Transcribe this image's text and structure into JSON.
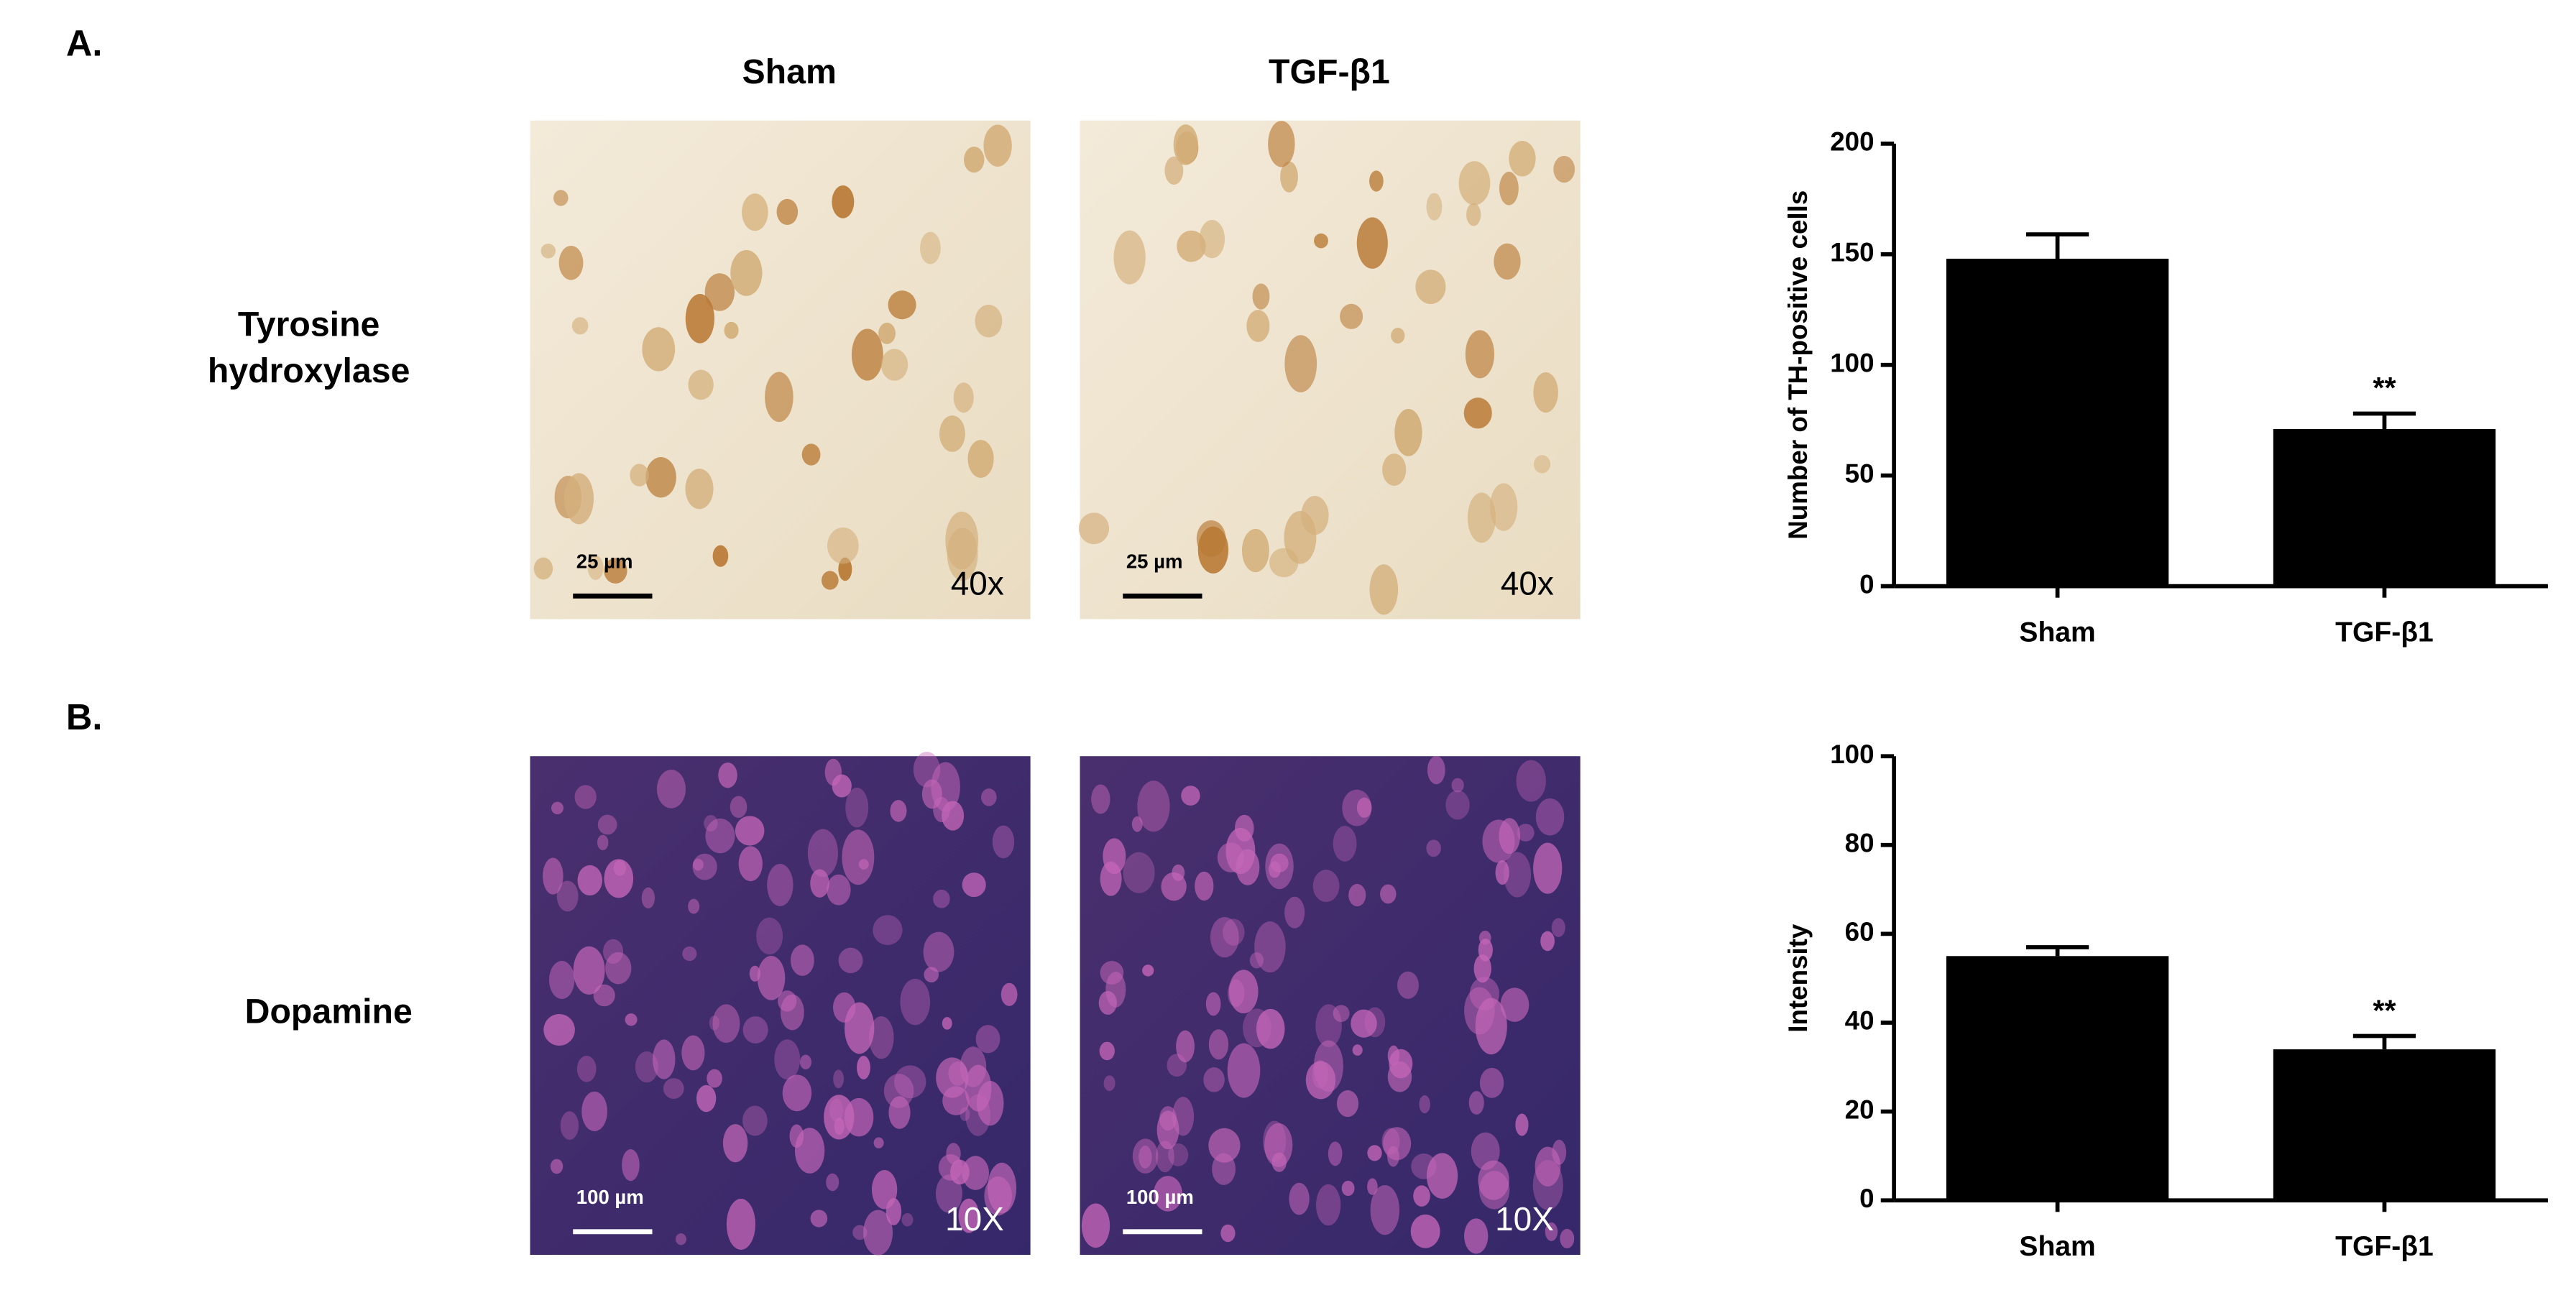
{
  "figure": {
    "panel_labels": [
      "A.",
      "B."
    ],
    "column_labels": [
      "Sham",
      "TGF-β1"
    ],
    "row_labels": [
      [
        "Tyrosine",
        "hydroxylase"
      ],
      [
        "Dopamine"
      ]
    ],
    "images": [
      {
        "scale_bar": "25 µm",
        "magnification": "40x"
      },
      {
        "scale_bar": "25 µm",
        "magnification": "40x"
      },
      {
        "scale_bar": "100 µm",
        "magnification": "10X"
      },
      {
        "scale_bar": "100 µm",
        "magnification": "10X"
      }
    ]
  },
  "chart_data": [
    {
      "type": "bar",
      "y_label": "Number of TH-positive cells",
      "categories": [
        "Sham",
        "TGF-β1"
      ],
      "values": [
        148,
        71
      ],
      "errors": [
        11,
        7
      ],
      "significance": [
        null,
        "**"
      ],
      "color": "#000000",
      "ylim": [
        0,
        200
      ],
      "yticks": [
        0,
        50,
        100,
        150,
        200
      ]
    },
    {
      "type": "bar",
      "y_label": "Intensity",
      "categories": [
        "Sham",
        "TGF-β1"
      ],
      "values": [
        55,
        34
      ],
      "errors": [
        2,
        3
      ],
      "significance": [
        null,
        "**"
      ],
      "color": "#000000",
      "ylim": [
        0,
        100
      ],
      "yticks": [
        0,
        20,
        40,
        60,
        80,
        100
      ]
    }
  ]
}
